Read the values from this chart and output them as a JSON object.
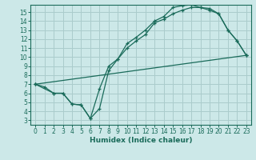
{
  "xlabel": "Humidex (Indice chaleur)",
  "bg_color": "#cce8e8",
  "grid_color": "#aacccc",
  "line_color": "#1a6b5a",
  "xlim": [
    -0.5,
    23.5
  ],
  "ylim": [
    2.5,
    15.8
  ],
  "xticks": [
    0,
    1,
    2,
    3,
    4,
    5,
    6,
    7,
    8,
    9,
    10,
    11,
    12,
    13,
    14,
    15,
    16,
    17,
    18,
    19,
    20,
    21,
    22,
    23
  ],
  "yticks": [
    3,
    4,
    5,
    6,
    7,
    8,
    9,
    10,
    11,
    12,
    13,
    14,
    15
  ],
  "line1_x": [
    0,
    1,
    2,
    3,
    4,
    5,
    6,
    7,
    8,
    9,
    10,
    11,
    12,
    13,
    14,
    15,
    16,
    17,
    18,
    19,
    20,
    21,
    22,
    23
  ],
  "line1_y": [
    7.0,
    6.7,
    6.0,
    6.0,
    4.8,
    4.7,
    3.2,
    4.3,
    8.5,
    9.8,
    11.0,
    11.8,
    12.5,
    13.8,
    14.2,
    14.8,
    15.2,
    15.5,
    15.5,
    15.4,
    14.8,
    13.0,
    11.8,
    10.2
  ],
  "line2_x": [
    0,
    2,
    3,
    4,
    5,
    6,
    7,
    8,
    9,
    10,
    11,
    12,
    13,
    14,
    15,
    16,
    17,
    18,
    19,
    20,
    21,
    22,
    23
  ],
  "line2_y": [
    7.0,
    6.0,
    6.0,
    4.8,
    4.7,
    3.2,
    6.5,
    9.0,
    9.8,
    11.5,
    12.2,
    13.0,
    14.0,
    14.5,
    15.5,
    15.7,
    15.8,
    15.5,
    15.2,
    14.8,
    13.0,
    11.8,
    10.2
  ],
  "line3_x": [
    0,
    23
  ],
  "line3_y": [
    7.0,
    10.2
  ],
  "xlabel_fontsize": 6.5,
  "tick_fontsize": 5.5
}
